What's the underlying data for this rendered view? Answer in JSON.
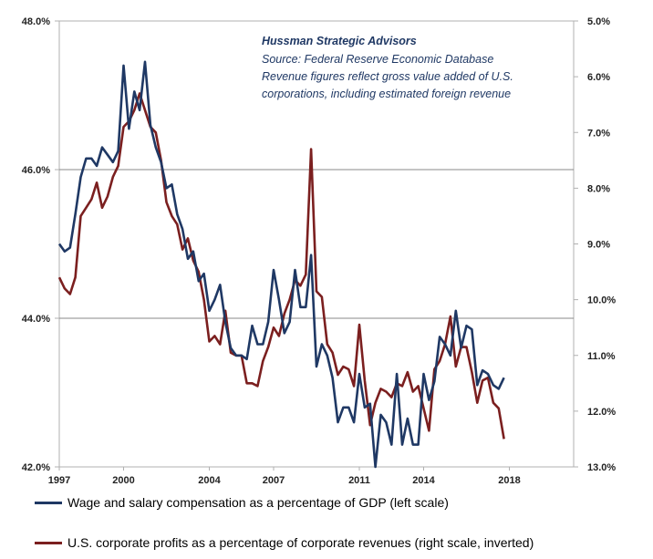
{
  "colors": {
    "wage": "#1f3864",
    "profit": "#7b1f1f",
    "grid": "#888888",
    "frame": "#b0b0b0"
  },
  "annotation": [
    "Hussman Strategic Advisors",
    "Source: Federal Reserve Economic Database",
    "Revenue figures reflect gross value added of U.S.",
    "corporations, including estimated foreign revenue"
  ],
  "legend": [
    "Wage and salary compensation as a percentage of GDP (left scale)",
    "U.S. corporate profits as a percentage of corporate revenues (right scale, inverted)"
  ],
  "chart_data": {
    "type": "line",
    "title": "",
    "xlim": [
      1997,
      2021
    ],
    "x_ticks": [
      1997,
      2000,
      2004,
      2007,
      2011,
      2014,
      2018
    ],
    "x_tick_labels": [
      "1997",
      "2000",
      "2004",
      "2007",
      "2011",
      "2014",
      "2018"
    ],
    "y_left": {
      "lim": [
        42.0,
        48.0
      ],
      "ticks": [
        42,
        44,
        46,
        48
      ],
      "tick_labels": [
        "42.0%",
        "44.0%",
        "46.0%",
        "48.0%"
      ]
    },
    "y_right": {
      "lim": [
        5.0,
        13.0
      ],
      "inverted": true,
      "ticks": [
        5,
        6,
        7,
        8,
        9,
        10,
        11,
        12,
        13
      ],
      "tick_labels": [
        "5.0%",
        "6.0%",
        "7.0%",
        "8.0%",
        "9.0%",
        "10.0%",
        "11.0%",
        "12.0%",
        "13.0%"
      ]
    },
    "grid": "horizontal at left-axis ticks",
    "series": [
      {
        "name": "Wage and salary compensation as a percentage of GDP (left scale)",
        "axis": "left",
        "x": [
          1997.0,
          1997.25,
          1997.5,
          1997.75,
          1998.0,
          1998.25,
          1998.5,
          1998.75,
          1999.0,
          1999.25,
          1999.5,
          1999.75,
          2000.0,
          2000.25,
          2000.5,
          2000.75,
          2001.0,
          2001.25,
          2001.5,
          2001.75,
          2002.0,
          2002.25,
          2002.5,
          2002.75,
          2003.0,
          2003.25,
          2003.5,
          2003.75,
          2004.0,
          2004.25,
          2004.5,
          2004.75,
          2005.0,
          2005.25,
          2005.5,
          2005.75,
          2006.0,
          2006.25,
          2006.5,
          2006.75,
          2007.0,
          2007.25,
          2007.5,
          2007.75,
          2008.0,
          2008.25,
          2008.5,
          2008.75,
          2009.0,
          2009.25,
          2009.5,
          2009.75,
          2010.0,
          2010.25,
          2010.5,
          2010.75,
          2011.0,
          2011.25,
          2011.5,
          2011.75,
          2012.0,
          2012.25,
          2012.5,
          2012.75,
          2013.0,
          2013.25,
          2013.5,
          2013.75,
          2014.0,
          2014.25,
          2014.5,
          2014.75,
          2015.0,
          2015.25,
          2015.5,
          2015.75,
          2016.0,
          2016.25,
          2016.5,
          2016.75,
          2017.0,
          2017.25,
          2017.5,
          2017.75
        ],
        "values": [
          45.0,
          44.9,
          44.95,
          45.4,
          45.9,
          46.15,
          46.15,
          46.05,
          46.3,
          46.2,
          46.1,
          46.25,
          47.4,
          46.55,
          47.05,
          46.8,
          47.45,
          46.6,
          46.3,
          46.1,
          45.75,
          45.8,
          45.4,
          45.2,
          44.8,
          44.9,
          44.5,
          44.6,
          44.1,
          44.25,
          44.45,
          43.95,
          43.6,
          43.5,
          43.5,
          43.45,
          43.9,
          43.65,
          43.65,
          43.95,
          44.65,
          44.25,
          43.8,
          43.95,
          44.65,
          44.15,
          44.15,
          44.85,
          43.35,
          43.65,
          43.5,
          43.2,
          42.6,
          42.8,
          42.8,
          42.6,
          43.25,
          42.8,
          42.85,
          42.0,
          42.7,
          42.6,
          42.3,
          43.25,
          42.3,
          42.65,
          42.3,
          42.3,
          43.25,
          42.9,
          43.15,
          43.75,
          43.65,
          43.5,
          44.1,
          43.6,
          43.9,
          43.85,
          43.1,
          43.3,
          43.25,
          43.1,
          43.05,
          43.2
        ]
      },
      {
        "name": "U.S. corporate profits as a percentage of corporate revenues (right scale, inverted)",
        "axis": "right",
        "x": [
          1997.0,
          1997.25,
          1997.5,
          1997.75,
          1998.0,
          1998.25,
          1998.5,
          1998.75,
          1999.0,
          1999.25,
          1999.5,
          1999.75,
          2000.0,
          2000.25,
          2000.5,
          2000.75,
          2001.0,
          2001.25,
          2001.5,
          2001.75,
          2002.0,
          2002.25,
          2002.5,
          2002.75,
          2003.0,
          2003.25,
          2003.5,
          2003.75,
          2004.0,
          2004.25,
          2004.5,
          2004.75,
          2005.0,
          2005.25,
          2005.5,
          2005.75,
          2006.0,
          2006.25,
          2006.5,
          2006.75,
          2007.0,
          2007.25,
          2007.5,
          2007.75,
          2008.0,
          2008.25,
          2008.5,
          2008.75,
          2009.0,
          2009.25,
          2009.5,
          2009.75,
          2010.0,
          2010.25,
          2010.5,
          2010.75,
          2011.0,
          2011.25,
          2011.5,
          2011.75,
          2012.0,
          2012.25,
          2012.5,
          2012.75,
          2013.0,
          2013.25,
          2013.5,
          2013.75,
          2014.0,
          2014.25,
          2014.5,
          2014.75,
          2015.0,
          2015.25,
          2015.5,
          2015.75,
          2016.0,
          2016.25,
          2016.5,
          2016.75,
          2017.0,
          2017.25,
          2017.5,
          2017.75
        ],
        "values": [
          9.6,
          9.8,
          9.9,
          9.6,
          8.5,
          8.35,
          8.2,
          7.9,
          8.35,
          8.15,
          7.8,
          7.6,
          6.9,
          6.8,
          6.6,
          6.3,
          6.6,
          6.9,
          7.0,
          7.5,
          8.25,
          8.5,
          8.65,
          9.1,
          8.9,
          9.3,
          9.5,
          10.0,
          10.75,
          10.65,
          10.8,
          10.2,
          10.95,
          11.0,
          11.0,
          11.5,
          11.5,
          11.55,
          11.1,
          10.85,
          10.5,
          10.65,
          10.25,
          10.0,
          9.65,
          9.75,
          9.55,
          7.3,
          9.85,
          9.95,
          10.8,
          10.95,
          11.35,
          11.2,
          11.25,
          11.55,
          10.45,
          11.45,
          12.25,
          11.85,
          11.6,
          11.65,
          11.75,
          11.5,
          11.55,
          11.3,
          11.65,
          11.55,
          11.95,
          12.35,
          11.25,
          11.1,
          10.8,
          10.3,
          11.2,
          10.85,
          10.85,
          11.3,
          11.85,
          11.45,
          11.4,
          11.85,
          11.95,
          12.5
        ]
      }
    ]
  }
}
